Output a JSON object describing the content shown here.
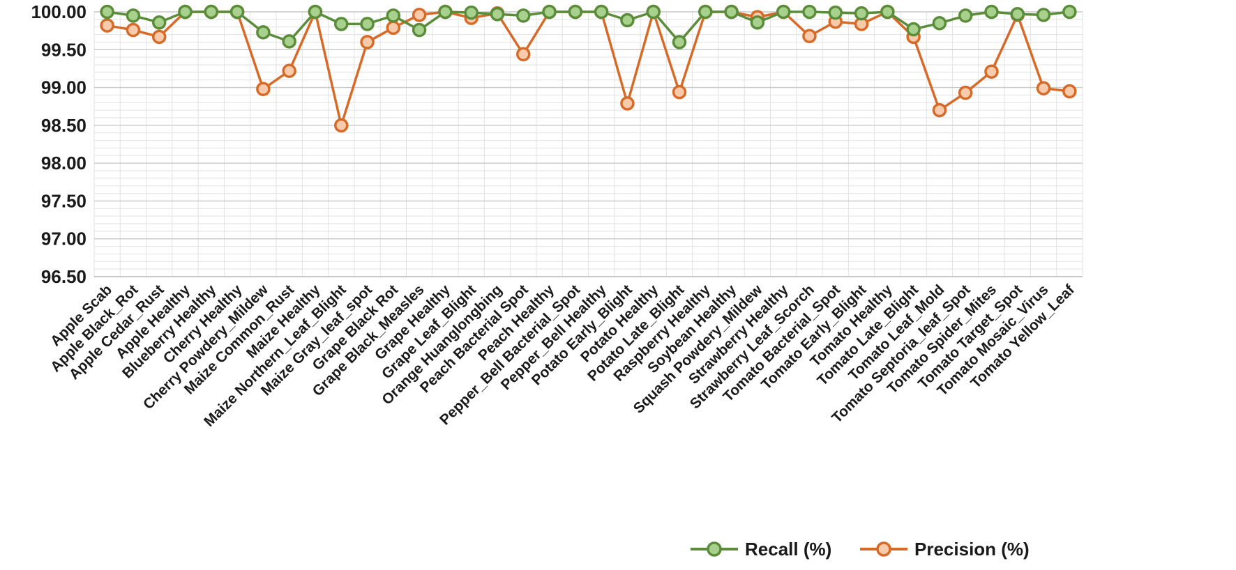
{
  "chart_data": {
    "type": "line",
    "title": "",
    "xlabel": "",
    "ylabel": "",
    "ylim": [
      96.5,
      100.0
    ],
    "yticks": [
      "100.00",
      "99.50",
      "99.00",
      "98.50",
      "98.00",
      "97.50",
      "97.00",
      "96.50"
    ],
    "ytick_values": [
      100.0,
      99.5,
      99.0,
      98.5,
      98.0,
      97.5,
      97.0,
      96.5
    ],
    "grid": true,
    "legend_position": "bottom-right",
    "categories": [
      "Apple Scab",
      "Apple Black_Rot",
      "Apple Cedar_Rust",
      "Apple Healthy",
      "Blueberry Healthy",
      "Cherry Healthy",
      "Cherry Powdery_Mildew",
      "Maize Common_Rust",
      "Maize Healthy",
      "Maize Northern_Leaf_Blight",
      "Maize Gray_leaf_spot",
      "Grape Black Rot",
      "Grape Black_Measles",
      "Grape Healthy",
      "Grape Leaf_Blight",
      "Orange Huanglongbing",
      "Peach Bacterial Spot",
      "Peach Healthy",
      "Pepper_Bell Bacterial_Spot",
      "Pepper_Bell Healthy",
      "Potato Early_Blight",
      "Potato Healthy",
      "Potato Late_Blight",
      "Raspberry Healthy",
      "Soybean Healthy",
      "Squash Powdery_Mildew",
      "Strawberry Healthy",
      "Strawberry Leaf_Scorch",
      "Tomato Bacterial_Spot",
      "Tomato Early_Blight",
      "Tomato Healthy",
      "Tomato Late_Blight",
      "Tomato Leaf_Mold",
      "Tomato Septoria_leaf_Spot",
      "Tomato Spider_Mites",
      "Tomato Target_Spot",
      "Tomato Mosaic_Virus",
      "Tomato Yellow_Leaf"
    ],
    "series": [
      {
        "name": "Recall (%)",
        "color": "#5b8c3a",
        "marker_fill": "#a9d18e",
        "values": [
          100.0,
          99.95,
          99.86,
          100.0,
          100.0,
          100.0,
          99.73,
          99.61,
          100.0,
          99.84,
          99.84,
          99.95,
          99.76,
          100.0,
          99.99,
          99.97,
          99.95,
          100.0,
          100.0,
          100.0,
          99.89,
          100.0,
          99.6,
          100.0,
          100.0,
          99.86,
          100.0,
          100.0,
          99.99,
          99.98,
          100.0,
          99.77,
          99.85,
          99.95,
          100.0,
          99.97,
          99.96,
          100.0
        ]
      },
      {
        "name": "Precision (%)",
        "color": "#d86a28",
        "marker_fill": "#f8cbad",
        "values": [
          99.82,
          99.76,
          99.67,
          100.0,
          100.0,
          100.0,
          98.98,
          99.22,
          100.0,
          98.5,
          99.6,
          99.79,
          99.96,
          100.0,
          99.92,
          99.98,
          99.44,
          100.0,
          100.0,
          100.0,
          98.79,
          100.0,
          98.94,
          100.0,
          100.0,
          99.93,
          100.0,
          99.68,
          99.87,
          99.84,
          100.0,
          99.67,
          98.7,
          98.93,
          99.21,
          99.96,
          98.99,
          98.95
        ]
      }
    ]
  }
}
